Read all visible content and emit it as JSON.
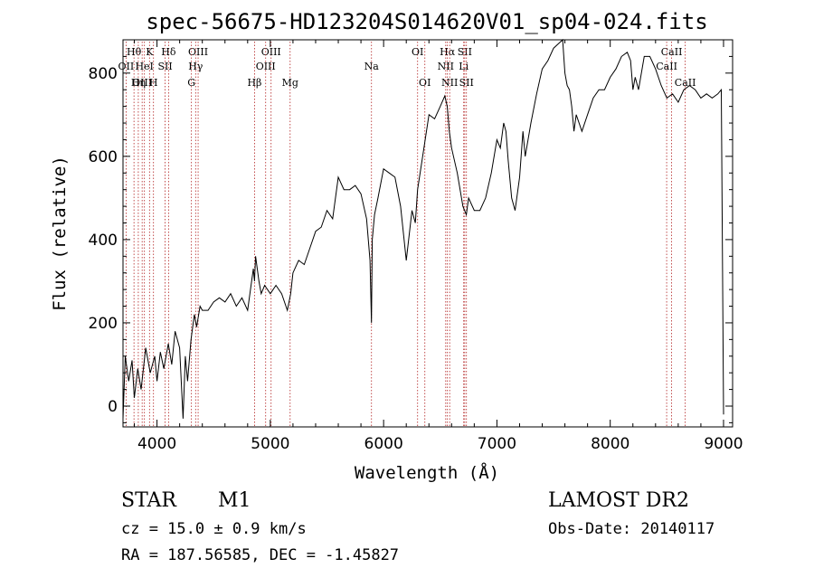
{
  "chart_data": {
    "type": "line",
    "title": "spec-56675-HD123204S014620V01_sp04-024.fits",
    "xlabel": "Wavelength (Å)",
    "ylabel": "Flux (relative)",
    "xlim": [
      3700,
      9080
    ],
    "ylim": [
      -50,
      880
    ],
    "xticks": [
      4000,
      5000,
      6000,
      7000,
      8000,
      9000
    ],
    "yticks": [
      0,
      200,
      400,
      600,
      800
    ],
    "grid": false,
    "series": [
      {
        "x": [
          3700,
          3720,
          3750,
          3780,
          3800,
          3830,
          3860,
          3900,
          3940,
          3980,
          4000,
          4030,
          4060,
          4100,
          4130,
          4160,
          4200,
          4230,
          4250,
          4270,
          4300,
          4330,
          4350,
          4380,
          4400,
          4450,
          4500,
          4550,
          4600,
          4650,
          4700,
          4750,
          4800,
          4850,
          4861,
          4870,
          4900,
          4920,
          4950,
          5000,
          5050,
          5100,
          5150,
          5180,
          5200,
          5250,
          5300,
          5350,
          5400,
          5450,
          5500,
          5550,
          5600,
          5650,
          5700,
          5750,
          5800,
          5850,
          5880,
          5893,
          5900,
          5920,
          5950,
          6000,
          6050,
          6100,
          6150,
          6200,
          6250,
          6280,
          6300,
          6350,
          6400,
          6450,
          6500,
          6540,
          6562,
          6580,
          6600,
          6650,
          6700,
          6730,
          6750,
          6800,
          6850,
          6900,
          6950,
          7000,
          7030,
          7060,
          7080,
          7100,
          7130,
          7160,
          7200,
          7230,
          7250,
          7300,
          7350,
          7400,
          7450,
          7500,
          7540,
          7580,
          7600,
          7620,
          7640,
          7660,
          7680,
          7700,
          7750,
          7800,
          7850,
          7900,
          7950,
          8000,
          8050,
          8100,
          8150,
          8180,
          8200,
          8220,
          8250,
          8300,
          8350,
          8400,
          8450,
          8500,
          8550,
          8600,
          8650,
          8700,
          8750,
          8800,
          8850,
          8900,
          8950,
          8980,
          9000
        ],
        "y": [
          -30,
          120,
          60,
          110,
          20,
          90,
          40,
          140,
          80,
          120,
          60,
          130,
          90,
          150,
          100,
          180,
          140,
          -30,
          120,
          60,
          160,
          220,
          190,
          240,
          230,
          230,
          250,
          260,
          250,
          270,
          240,
          260,
          230,
          330,
          300,
          360,
          300,
          270,
          290,
          270,
          290,
          270,
          230,
          270,
          320,
          350,
          340,
          380,
          420,
          430,
          470,
          450,
          550,
          520,
          520,
          530,
          510,
          450,
          350,
          200,
          400,
          460,
          500,
          570,
          560,
          550,
          480,
          350,
          470,
          440,
          520,
          610,
          700,
          690,
          720,
          745,
          720,
          660,
          620,
          560,
          480,
          460,
          500,
          470,
          470,
          500,
          560,
          640,
          620,
          680,
          660,
          590,
          500,
          470,
          550,
          660,
          600,
          680,
          750,
          810,
          830,
          860,
          870,
          880,
          800,
          770,
          760,
          720,
          660,
          700,
          660,
          700,
          740,
          760,
          760,
          790,
          810,
          840,
          850,
          830,
          760,
          790,
          760,
          840,
          840,
          810,
          770,
          740,
          750,
          730,
          760,
          770,
          760,
          740,
          750,
          740,
          750,
          760,
          -20
        ]
      }
    ],
    "line_markers": [
      {
        "label": "Hθ",
        "wavelength": 3797,
        "row": 0
      },
      {
        "label": "OII",
        "wavelength": 3727,
        "row": 1
      },
      {
        "label": "OIII",
        "wavelength": 3869,
        "row": 2
      },
      {
        "label": "K",
        "wavelength": 3934,
        "row": 0
      },
      {
        "label": "HeI",
        "wavelength": 3889,
        "row": 1
      },
      {
        "label": "Hη",
        "wavelength": 3835,
        "row": 2
      },
      {
        "label": "SII",
        "wavelength": 4072,
        "row": 1
      },
      {
        "label": "H",
        "wavelength": 3969,
        "row": 2
      },
      {
        "label": "Hδ",
        "wavelength": 4102,
        "row": 0
      },
      {
        "label": "OIII",
        "wavelength": 4363,
        "row": 0
      },
      {
        "label": "Hγ",
        "wavelength": 4341,
        "row": 1
      },
      {
        "label": "G",
        "wavelength": 4304,
        "row": 2
      },
      {
        "label": "Hβ",
        "wavelength": 4861,
        "row": 2
      },
      {
        "label": "OIII",
        "wavelength": 5007,
        "row": 0
      },
      {
        "label": "OIII",
        "wavelength": 4959,
        "row": 1
      },
      {
        "label": "Mg",
        "wavelength": 5175,
        "row": 2
      },
      {
        "label": "Na",
        "wavelength": 5893,
        "row": 1
      },
      {
        "label": "OI",
        "wavelength": 6300,
        "row": 0
      },
      {
        "label": "OI",
        "wavelength": 6364,
        "row": 2
      },
      {
        "label": "Hα",
        "wavelength": 6563,
        "row": 0
      },
      {
        "label": "SII",
        "wavelength": 6716,
        "row": 0
      },
      {
        "label": "NII",
        "wavelength": 6548,
        "row": 1
      },
      {
        "label": "Li",
        "wavelength": 6707,
        "row": 1
      },
      {
        "label": "NII",
        "wavelength": 6583,
        "row": 2
      },
      {
        "label": "SII",
        "wavelength": 6731,
        "row": 2
      },
      {
        "label": "CaII",
        "wavelength": 8542,
        "row": 0
      },
      {
        "label": "CaII",
        "wavelength": 8498,
        "row": 1
      },
      {
        "label": "CaII",
        "wavelength": 8662,
        "row": 2
      }
    ]
  },
  "info": {
    "object_class": "STAR",
    "subclass": "M1",
    "survey": "LAMOST DR2",
    "redshift": "cz = 15.0 ± 0.9 km/s",
    "obs_date": "Obs-Date: 20140117",
    "coords": "RA = 187.56585, DEC =  -1.45827"
  },
  "colors": {
    "spectrum": "#000000",
    "marker_line": "#b22222",
    "axes": "#000000"
  }
}
